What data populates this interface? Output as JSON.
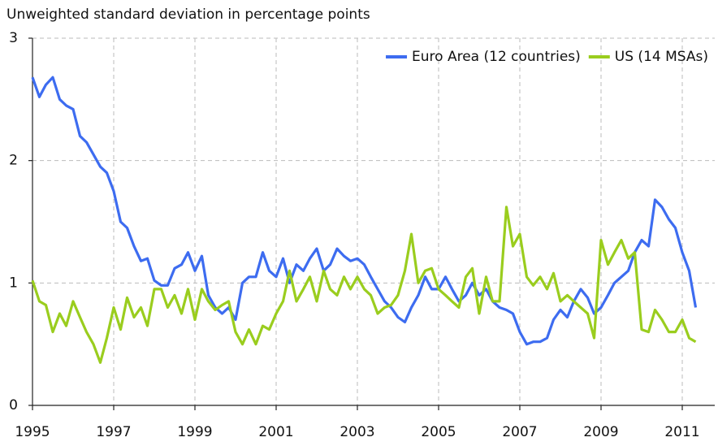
{
  "chart_data": {
    "type": "line",
    "title": "Unweighted standard deviation in percentage points",
    "x": [
      1995,
      1995.17,
      1995.33,
      1995.5,
      1995.67,
      1995.83,
      1996,
      1996.17,
      1996.33,
      1996.5,
      1996.67,
      1996.83,
      1997,
      1997.17,
      1997.33,
      1997.5,
      1997.67,
      1997.83,
      1998,
      1998.17,
      1998.33,
      1998.5,
      1998.67,
      1998.83,
      1999,
      1999.17,
      1999.33,
      1999.5,
      1999.67,
      1999.83,
      2000,
      2000.17,
      2000.33,
      2000.5,
      2000.67,
      2000.83,
      2001,
      2001.17,
      2001.33,
      2001.5,
      2001.67,
      2001.83,
      2002,
      2002.17,
      2002.33,
      2002.5,
      2002.67,
      2002.83,
      2003,
      2003.17,
      2003.33,
      2003.5,
      2003.67,
      2003.83,
      2004,
      2004.17,
      2004.33,
      2004.5,
      2004.67,
      2004.83,
      2005,
      2005.17,
      2005.33,
      2005.5,
      2005.67,
      2005.83,
      2006,
      2006.17,
      2006.33,
      2006.5,
      2006.67,
      2006.83,
      2007,
      2007.17,
      2007.33,
      2007.5,
      2007.67,
      2007.83,
      2008,
      2008.17,
      2008.33,
      2008.5,
      2008.67,
      2008.83,
      2009,
      2009.17,
      2009.33,
      2009.5,
      2009.67,
      2009.83,
      2010,
      2010.17,
      2010.33,
      2010.5,
      2010.67,
      2010.83,
      2011,
      2011.17,
      2011.33
    ],
    "series": [
      {
        "name": "Euro Area (12 countries)",
        "color": "#3d6cf0",
        "values": [
          2.68,
          2.52,
          2.62,
          2.68,
          2.5,
          2.45,
          2.42,
          2.2,
          2.15,
          2.05,
          1.95,
          1.9,
          1.75,
          1.5,
          1.45,
          1.3,
          1.18,
          1.2,
          1.02,
          0.98,
          0.98,
          1.12,
          1.15,
          1.25,
          1.1,
          1.22,
          0.9,
          0.8,
          0.75,
          0.8,
          0.7,
          1.0,
          1.05,
          1.05,
          1.25,
          1.1,
          1.05,
          1.2,
          1.0,
          1.15,
          1.1,
          1.2,
          1.28,
          1.1,
          1.15,
          1.28,
          1.22,
          1.18,
          1.2,
          1.15,
          1.05,
          0.95,
          0.85,
          0.8,
          0.72,
          0.68,
          0.8,
          0.9,
          1.05,
          0.95,
          0.95,
          1.05,
          0.95,
          0.85,
          0.9,
          1.0,
          0.9,
          0.95,
          0.85,
          0.8,
          0.78,
          0.75,
          0.6,
          0.5,
          0.52,
          0.52,
          0.55,
          0.7,
          0.78,
          0.72,
          0.85,
          0.95,
          0.88,
          0.75,
          0.8,
          0.9,
          1.0,
          1.05,
          1.1,
          1.25,
          1.35,
          1.3,
          1.68,
          1.62,
          1.52,
          1.45,
          1.25,
          1.1,
          0.8
        ]
      },
      {
        "name": "US (14 MSAs)",
        "color": "#9acd1e",
        "values": [
          1.02,
          0.85,
          0.82,
          0.6,
          0.75,
          0.65,
          0.85,
          0.72,
          0.6,
          0.5,
          0.35,
          0.55,
          0.8,
          0.62,
          0.88,
          0.72,
          0.8,
          0.65,
          0.95,
          0.95,
          0.8,
          0.9,
          0.75,
          0.95,
          0.7,
          0.95,
          0.85,
          0.78,
          0.82,
          0.85,
          0.6,
          0.5,
          0.62,
          0.5,
          0.65,
          0.62,
          0.75,
          0.85,
          1.1,
          0.85,
          0.95,
          1.05,
          0.85,
          1.1,
          0.95,
          0.9,
          1.05,
          0.95,
          1.05,
          0.95,
          0.9,
          0.75,
          0.8,
          0.82,
          0.9,
          1.1,
          1.4,
          1.0,
          1.1,
          1.12,
          0.95,
          0.9,
          0.85,
          0.8,
          1.05,
          1.12,
          0.75,
          1.05,
          0.85,
          0.85,
          1.62,
          1.3,
          1.4,
          1.05,
          0.98,
          1.05,
          0.95,
          1.08,
          0.85,
          0.9,
          0.85,
          0.8,
          0.75,
          0.55,
          1.35,
          1.15,
          1.25,
          1.35,
          1.2,
          1.25,
          0.62,
          0.6,
          0.78,
          0.7,
          0.6,
          0.6,
          0.7,
          0.55,
          0.52
        ]
      }
    ],
    "xlim": [
      1995,
      2011.8
    ],
    "xticks": [
      1995,
      1997,
      1999,
      2001,
      2003,
      2005,
      2007,
      2009,
      2011
    ],
    "ylim": [
      0,
      3
    ],
    "yticks": [
      0,
      1,
      2,
      3
    ],
    "grid": true,
    "legend": "upper right"
  }
}
